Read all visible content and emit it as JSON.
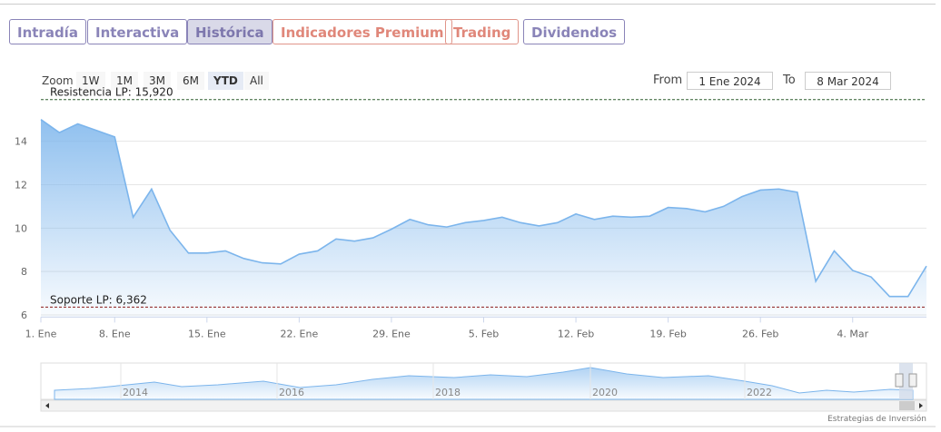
{
  "tabs": [
    "Intradía",
    "Interactiva",
    "Histórica",
    "Indicadores Premium",
    "Trading",
    "Dividendos"
  ],
  "zoom": {
    "label": "Zoom",
    "buttons": [
      "1W",
      "1M",
      "3M",
      "6M",
      "YTD",
      "All"
    ]
  },
  "range": {
    "from_label": "From",
    "from": "1 Ene 2024",
    "to_label": "To",
    "to": "8 Mar 2024"
  },
  "chart_data": {
    "type": "area",
    "categories": [
      "1. Ene",
      null,
      null,
      null,
      "8. Ene",
      null,
      null,
      null,
      null,
      "15. Ene",
      null,
      null,
      null,
      null,
      "22. Ene",
      null,
      null,
      null,
      null,
      "29. Ene",
      null,
      null,
      null,
      null,
      "5. Feb",
      null,
      null,
      null,
      null,
      "12. Feb",
      null,
      null,
      null,
      null,
      "19. Feb",
      null,
      null,
      null,
      null,
      "26. Feb",
      null,
      null,
      null,
      null,
      "4. Mar",
      null,
      null,
      null,
      null
    ],
    "values": [
      15.0,
      14.4,
      14.8,
      14.5,
      14.2,
      10.5,
      11.8,
      9.9,
      8.85,
      8.85,
      8.95,
      8.6,
      8.4,
      8.35,
      8.8,
      8.95,
      9.5,
      9.4,
      9.55,
      9.95,
      10.4,
      10.15,
      10.05,
      10.25,
      10.35,
      10.5,
      10.25,
      10.1,
      10.25,
      10.65,
      10.4,
      10.55,
      10.5,
      10.55,
      10.95,
      10.9,
      10.75,
      11.0,
      11.45,
      11.75,
      11.8,
      11.65,
      7.55,
      8.95,
      8.05,
      7.75,
      6.85,
      6.85,
      8.25
    ],
    "color": "#7cb5ec",
    "ylim": [
      5.9,
      16.2
    ],
    "yticks": [
      6,
      8,
      10,
      12,
      14
    ],
    "grid": true,
    "plot_lines": [
      {
        "label": "Resistencia LP: 15,920",
        "value": 15.92,
        "color": "#2e5e2e"
      },
      {
        "label": "Soporte LP: 6,362",
        "value": 6.362,
        "color": "#8b1a1a"
      }
    ]
  },
  "navigator": {
    "labels": [
      "2014",
      "2016",
      "2018",
      "2020",
      "2022"
    ]
  },
  "footer": "Estrategias de Inversión"
}
